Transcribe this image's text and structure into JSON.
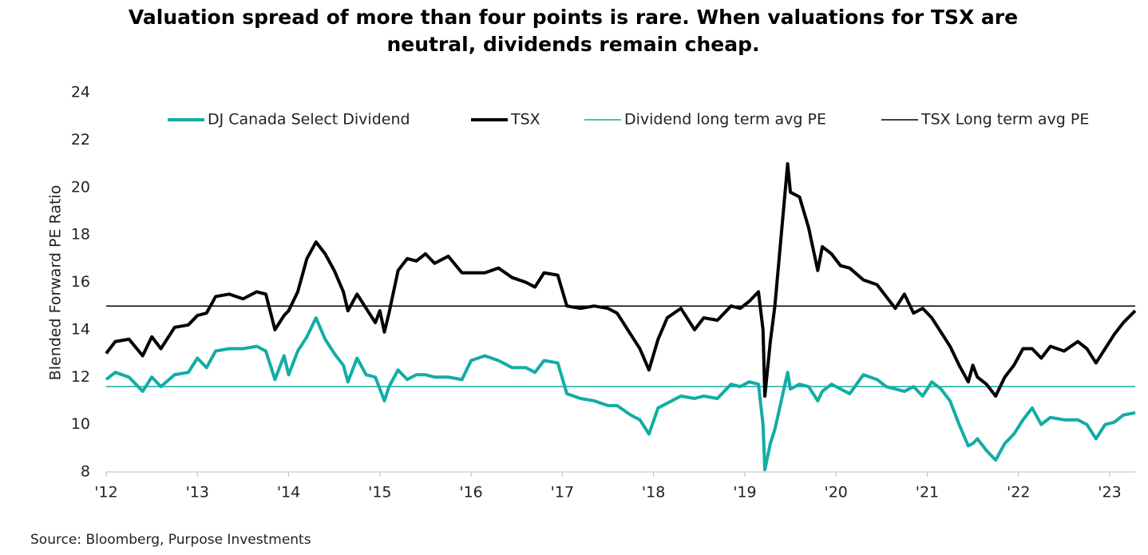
{
  "chart_data": {
    "type": "line",
    "title": "Valuation spread of more than four points is rare. When valuations for TSX are neutral, dividends remain cheap.",
    "title_lines": [
      "Valuation spread of more than four points is rare. When valuations for TSX are",
      "neutral, dividends remain cheap."
    ],
    "y_label": "Blended Forward PE Ratio",
    "source": "Source: Bloomberg, Purpose Investments",
    "xlim": [
      2012,
      2023.28
    ],
    "ylim": [
      8,
      24
    ],
    "yticks": [
      8,
      10,
      12,
      14,
      16,
      18,
      20,
      22,
      24
    ],
    "xticks": [
      {
        "value": 2012,
        "label": "'12"
      },
      {
        "value": 2013,
        "label": "'13"
      },
      {
        "value": 2014,
        "label": "'14"
      },
      {
        "value": 2015,
        "label": "'15"
      },
      {
        "value": 2016,
        "label": "'16"
      },
      {
        "value": 2017,
        "label": "'17"
      },
      {
        "value": 2018,
        "label": "'18"
      },
      {
        "value": 2019,
        "label": "'19"
      },
      {
        "value": 2020,
        "label": "'20"
      },
      {
        "value": 2021,
        "label": "'21"
      },
      {
        "value": 2022,
        "label": "'22"
      },
      {
        "value": 2023,
        "label": "'23"
      }
    ],
    "grid": false,
    "legend": "top",
    "x": [
      2012.0,
      2012.1,
      2012.25,
      2012.4,
      2012.5,
      2012.6,
      2012.75,
      2012.9,
      2013.0,
      2013.1,
      2013.2,
      2013.35,
      2013.5,
      2013.65,
      2013.75,
      2013.85,
      2013.95,
      2014.0,
      2014.1,
      2014.2,
      2014.3,
      2014.4,
      2014.5,
      2014.6,
      2014.65,
      2014.75,
      2014.85,
      2014.95,
      2015.0,
      2015.05,
      2015.1,
      2015.2,
      2015.3,
      2015.4,
      2015.5,
      2015.6,
      2015.75,
      2015.9,
      2016.0,
      2016.15,
      2016.3,
      2016.45,
      2016.6,
      2016.7,
      2016.8,
      2016.95,
      2017.05,
      2017.2,
      2017.35,
      2017.5,
      2017.6,
      2017.75,
      2017.85,
      2017.95,
      2018.05,
      2018.15,
      2018.3,
      2018.45,
      2018.55,
      2018.7,
      2018.85,
      2018.95,
      2019.05,
      2019.15,
      2019.2,
      2019.22,
      2019.28,
      2019.33,
      2019.4,
      2019.47,
      2019.5,
      2019.6,
      2019.7,
      2019.8,
      2019.85,
      2019.95,
      2020.05,
      2020.15,
      2020.3,
      2020.45,
      2020.55,
      2020.65,
      2020.75,
      2020.85,
      2020.95,
      2021.05,
      2021.15,
      2021.25,
      2021.35,
      2021.45,
      2021.5,
      2021.55,
      2021.65,
      2021.75,
      2021.85,
      2021.95,
      2022.05,
      2022.15,
      2022.25,
      2022.35,
      2022.5,
      2022.65,
      2022.75,
      2022.85,
      2022.95,
      2023.05,
      2023.15,
      2023.28
    ],
    "series": [
      {
        "name": "DJ Canada Select Dividend",
        "color": "#12ada4",
        "width": 4,
        "values": [
          11.9,
          12.2,
          12.0,
          11.4,
          12.0,
          11.6,
          12.1,
          12.2,
          12.8,
          12.4,
          13.1,
          13.2,
          13.2,
          13.3,
          13.1,
          11.9,
          12.9,
          12.1,
          13.1,
          13.7,
          14.5,
          13.6,
          13.0,
          12.5,
          11.8,
          12.8,
          12.1,
          12.0,
          11.5,
          11.0,
          11.6,
          12.3,
          11.9,
          12.1,
          12.1,
          12.0,
          12.0,
          11.9,
          12.7,
          12.9,
          12.7,
          12.4,
          12.4,
          12.2,
          12.7,
          12.6,
          11.3,
          11.1,
          11.0,
          10.8,
          10.8,
          10.4,
          10.2,
          9.6,
          10.7,
          10.9,
          11.2,
          11.1,
          11.2,
          11.1,
          11.7,
          11.6,
          11.8,
          11.7,
          10.0,
          8.1,
          9.2,
          9.8,
          11.0,
          12.2,
          11.5,
          11.7,
          11.6,
          11.0,
          11.4,
          11.7,
          11.5,
          11.3,
          12.1,
          11.9,
          11.6,
          11.5,
          11.4,
          11.6,
          11.2,
          11.8,
          11.5,
          11.0,
          10.0,
          9.1,
          9.2,
          9.4,
          8.9,
          8.5,
          9.2,
          9.6,
          10.2,
          10.7,
          10.0,
          10.3,
          10.2,
          10.2,
          10.0,
          9.4,
          10.0,
          10.1,
          10.4,
          10.5
        ]
      },
      {
        "name": "TSX",
        "color": "#000000",
        "width": 4,
        "values": [
          13.0,
          13.5,
          13.6,
          12.9,
          13.7,
          13.2,
          14.1,
          14.2,
          14.6,
          14.7,
          15.4,
          15.5,
          15.3,
          15.6,
          15.5,
          14.0,
          14.6,
          14.8,
          15.6,
          17.0,
          17.7,
          17.2,
          16.5,
          15.6,
          14.8,
          15.5,
          14.9,
          14.3,
          14.8,
          13.9,
          14.7,
          16.5,
          17.0,
          16.9,
          17.2,
          16.8,
          17.1,
          16.4,
          16.4,
          16.4,
          16.6,
          16.2,
          16.0,
          15.8,
          16.4,
          16.3,
          15.0,
          14.9,
          15.0,
          14.9,
          14.7,
          13.8,
          13.2,
          12.3,
          13.6,
          14.5,
          14.9,
          14.0,
          14.5,
          14.4,
          15.0,
          14.9,
          15.2,
          15.6,
          14.0,
          11.2,
          13.5,
          15.0,
          18.0,
          21.0,
          19.8,
          19.6,
          18.3,
          16.5,
          17.5,
          17.2,
          16.7,
          16.6,
          16.1,
          15.9,
          15.4,
          14.9,
          15.5,
          14.7,
          14.9,
          14.5,
          13.9,
          13.3,
          12.5,
          11.8,
          12.5,
          12.0,
          11.7,
          11.2,
          12.0,
          12.5,
          13.2,
          13.2,
          12.8,
          13.3,
          13.1,
          13.5,
          13.2,
          12.6,
          13.2,
          13.8,
          14.3,
          14.8
        ]
      }
    ],
    "reference_lines": [
      {
        "name": "Dividend long term avg PE",
        "color": "#12ada4",
        "width": 1.5,
        "value": 11.6
      },
      {
        "name": "TSX Long term avg PE",
        "color": "#000000",
        "width": 1.5,
        "value": 15.0
      }
    ]
  }
}
